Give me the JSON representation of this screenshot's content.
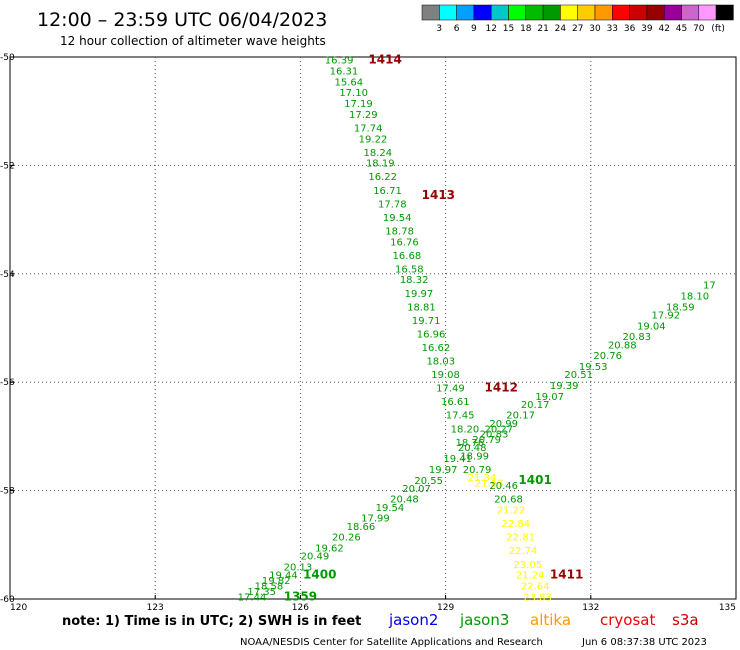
{
  "title": "12:00 – 23:59 UTC 06/04/2023",
  "subtitle": "12 hour collection of altimeter wave heights",
  "note": "note: 1) Time is in UTC; 2) SWH is in feet",
  "credit": "NOAA/NESDIS Center for Satellite Applications and Research",
  "timestamp": "Jun  6 08:37:38 UTC 2023",
  "satellites": [
    {
      "name": "jason2",
      "color": "#0000ee"
    },
    {
      "name": "jason3",
      "color": "#009900"
    },
    {
      "name": "altika",
      "color": "#ff9900"
    },
    {
      "name": "cryosat",
      "color": "#ee0000"
    },
    {
      "name": "s3a",
      "color": "#cc0000"
    }
  ],
  "colorbar": {
    "unit": "(ft)",
    "ticks": [
      "3",
      "6",
      "9",
      "12",
      "15",
      "18",
      "21",
      "24",
      "27",
      "30",
      "33",
      "36",
      "39",
      "42",
      "45",
      "70"
    ],
    "colors": [
      "#808080",
      "#00ffff",
      "#00a0ff",
      "#0000ff",
      "#00c8c8",
      "#00ff00",
      "#00bb00",
      "#009900",
      "#ffff00",
      "#ffcc00",
      "#ff9900",
      "#ff0000",
      "#cc0000",
      "#990000",
      "#990099",
      "#cc66cc",
      "#ff99ff",
      "#000000"
    ]
  },
  "chart_data": {
    "type": "scatter",
    "xlim": [
      120,
      135
    ],
    "ylim": [
      -60,
      -50
    ],
    "xticks": [
      120,
      123,
      126,
      129,
      132,
      135
    ],
    "yticks": [
      -50,
      -52,
      -54,
      -56,
      -58,
      -60
    ],
    "xtick_labels": [
      "120",
      "123",
      "126",
      "129",
      "132",
      "135"
    ],
    "ytick_labels": [
      "-50",
      "-52",
      "-54",
      "-56",
      "-58",
      "-60"
    ],
    "grid": true,
    "points": [
      {
        "lon": 126.8,
        "lat": -50.05,
        "v": "16.39",
        "c": "#009900"
      },
      {
        "lon": 126.9,
        "lat": -50.25,
        "v": "16.31",
        "c": "#009900"
      },
      {
        "lon": 127.0,
        "lat": -50.45,
        "v": "15.64",
        "c": "#009900"
      },
      {
        "lon": 127.1,
        "lat": -50.65,
        "v": "17.10",
        "c": "#009900"
      },
      {
        "lon": 127.2,
        "lat": -50.85,
        "v": "17.19",
        "c": "#009900"
      },
      {
        "lon": 127.3,
        "lat": -51.05,
        "v": "17.29",
        "c": "#009900"
      },
      {
        "lon": 127.4,
        "lat": -51.3,
        "v": "17.74",
        "c": "#009900"
      },
      {
        "lon": 127.5,
        "lat": -51.5,
        "v": "19.22",
        "c": "#009900"
      },
      {
        "lon": 127.6,
        "lat": -51.75,
        "v": "18.24",
        "c": "#009900"
      },
      {
        "lon": 127.65,
        "lat": -51.95,
        "v": "18.19",
        "c": "#009900"
      },
      {
        "lon": 127.7,
        "lat": -52.2,
        "v": "16.22",
        "c": "#009900"
      },
      {
        "lon": 127.8,
        "lat": -52.45,
        "v": "16.71",
        "c": "#009900"
      },
      {
        "lon": 127.9,
        "lat": -52.7,
        "v": "17.78",
        "c": "#009900"
      },
      {
        "lon": 128.0,
        "lat": -52.95,
        "v": "19.54",
        "c": "#009900"
      },
      {
        "lon": 128.05,
        "lat": -53.2,
        "v": "18.78",
        "c": "#009900"
      },
      {
        "lon": 128.15,
        "lat": -53.4,
        "v": "16.76",
        "c": "#009900"
      },
      {
        "lon": 128.2,
        "lat": -53.65,
        "v": "16.68",
        "c": "#009900"
      },
      {
        "lon": 128.25,
        "lat": -53.9,
        "v": "16.58",
        "c": "#009900"
      },
      {
        "lon": 128.35,
        "lat": -54.1,
        "v": "18.32",
        "c": "#009900"
      },
      {
        "lon": 128.45,
        "lat": -54.35,
        "v": "19.97",
        "c": "#009900"
      },
      {
        "lon": 128.5,
        "lat": -54.6,
        "v": "18.81",
        "c": "#009900"
      },
      {
        "lon": 128.6,
        "lat": -54.85,
        "v": "19.71",
        "c": "#009900"
      },
      {
        "lon": 128.7,
        "lat": -55.1,
        "v": "16.96",
        "c": "#009900"
      },
      {
        "lon": 128.8,
        "lat": -55.35,
        "v": "16.62",
        "c": "#009900"
      },
      {
        "lon": 128.9,
        "lat": -55.6,
        "v": "18.03",
        "c": "#009900"
      },
      {
        "lon": 129.0,
        "lat": -55.85,
        "v": "19.08",
        "c": "#009900"
      },
      {
        "lon": 129.1,
        "lat": -56.1,
        "v": "17.49",
        "c": "#009900"
      },
      {
        "lon": 129.2,
        "lat": -56.35,
        "v": "16.61",
        "c": "#009900"
      },
      {
        "lon": 129.3,
        "lat": -56.6,
        "v": "17.45",
        "c": "#009900"
      },
      {
        "lon": 129.4,
        "lat": -56.85,
        "v": "18.20",
        "c": "#009900"
      },
      {
        "lon": 129.5,
        "lat": -57.1,
        "v": "18.76",
        "c": "#009900"
      },
      {
        "lon": 129.6,
        "lat": -57.35,
        "v": "18.99",
        "c": "#009900"
      },
      {
        "lon": 129.65,
        "lat": -57.6,
        "v": "20.79",
        "c": "#009900"
      },
      {
        "lon": 129.75,
        "lat": -57.75,
        "v": "21.34",
        "c": "#ffff00"
      },
      {
        "lon": 129.9,
        "lat": -57.85,
        "v": "21.63",
        "c": "#ffff00"
      },
      {
        "lon": 130.2,
        "lat": -57.9,
        "v": "20.46",
        "c": "#009900"
      },
      {
        "lon": 130.3,
        "lat": -58.15,
        "v": "20.68",
        "c": "#009900"
      },
      {
        "lon": 130.35,
        "lat": -58.35,
        "v": "21.22",
        "c": "#ffff00"
      },
      {
        "lon": 130.45,
        "lat": -58.6,
        "v": "22.84",
        "c": "#ffff00"
      },
      {
        "lon": 130.55,
        "lat": -58.85,
        "v": "22.81",
        "c": "#ffff00"
      },
      {
        "lon": 130.6,
        "lat": -59.1,
        "v": "22.74",
        "c": "#ffff00"
      },
      {
        "lon": 130.7,
        "lat": -59.35,
        "v": "23.05",
        "c": "#ffff00"
      },
      {
        "lon": 130.75,
        "lat": -59.55,
        "v": "21.24",
        "c": "#ffff00"
      },
      {
        "lon": 130.85,
        "lat": -59.75,
        "v": "22.64",
        "c": "#ffff00"
      },
      {
        "lon": 130.9,
        "lat": -59.95,
        "v": "23.83",
        "c": "#ffff00"
      },
      {
        "lon": 125.0,
        "lat": -59.95,
        "v": "17.44",
        "c": "#009900"
      },
      {
        "lon": 125.2,
        "lat": -59.85,
        "v": "17.35",
        "c": "#009900"
      },
      {
        "lon": 125.35,
        "lat": -59.75,
        "v": "18.58",
        "c": "#009900"
      },
      {
        "lon": 125.5,
        "lat": -59.65,
        "v": "19.82",
        "c": "#009900"
      },
      {
        "lon": 125.65,
        "lat": -59.55,
        "v": "19.44",
        "c": "#009900"
      },
      {
        "lon": 125.95,
        "lat": -59.4,
        "v": "20.13",
        "c": "#009900"
      },
      {
        "lon": 126.3,
        "lat": -59.2,
        "v": "20.49",
        "c": "#009900"
      },
      {
        "lon": 126.6,
        "lat": -59.05,
        "v": "19.62",
        "c": "#009900"
      },
      {
        "lon": 126.95,
        "lat": -58.85,
        "v": "20.26",
        "c": "#009900"
      },
      {
        "lon": 127.25,
        "lat": -58.65,
        "v": "18.66",
        "c": "#009900"
      },
      {
        "lon": 127.55,
        "lat": -58.5,
        "v": "17.99",
        "c": "#009900"
      },
      {
        "lon": 127.85,
        "lat": -58.3,
        "v": "19.54",
        "c": "#009900"
      },
      {
        "lon": 128.15,
        "lat": -58.15,
        "v": "20.48",
        "c": "#009900"
      },
      {
        "lon": 128.4,
        "lat": -57.95,
        "v": "20.07",
        "c": "#009900"
      },
      {
        "lon": 128.65,
        "lat": -57.8,
        "v": "20.55",
        "c": "#009900"
      },
      {
        "lon": 128.95,
        "lat": -57.6,
        "v": "19.97",
        "c": "#009900"
      },
      {
        "lon": 129.25,
        "lat": -57.4,
        "v": "19.41",
        "c": "#009900"
      },
      {
        "lon": 129.55,
        "lat": -57.2,
        "v": "20.48",
        "c": "#009900"
      },
      {
        "lon": 129.85,
        "lat": -57.05,
        "v": "20.79",
        "c": "#009900"
      },
      {
        "lon": 130.0,
        "lat": -56.95,
        "v": "20.83",
        "c": "#009900"
      },
      {
        "lon": 130.1,
        "lat": -56.85,
        "v": "20.27",
        "c": "#009900"
      },
      {
        "lon": 130.2,
        "lat": -56.75,
        "v": "20.99",
        "c": "#009900"
      },
      {
        "lon": 130.55,
        "lat": -56.6,
        "v": "20.17",
        "c": "#009900"
      },
      {
        "lon": 130.85,
        "lat": -56.4,
        "v": "20.17",
        "c": "#009900"
      },
      {
        "lon": 131.15,
        "lat": -56.25,
        "v": "19.07",
        "c": "#009900"
      },
      {
        "lon": 131.45,
        "lat": -56.05,
        "v": "19.39",
        "c": "#009900"
      },
      {
        "lon": 131.75,
        "lat": -55.85,
        "v": "20.51",
        "c": "#009900"
      },
      {
        "lon": 132.05,
        "lat": -55.7,
        "v": "19.53",
        "c": "#009900"
      },
      {
        "lon": 132.35,
        "lat": -55.5,
        "v": "20.76",
        "c": "#009900"
      },
      {
        "lon": 132.65,
        "lat": -55.3,
        "v": "20.88",
        "c": "#009900"
      },
      {
        "lon": 132.95,
        "lat": -55.15,
        "v": "20.83",
        "c": "#009900"
      },
      {
        "lon": 133.25,
        "lat": -54.95,
        "v": "19.04",
        "c": "#009900"
      },
      {
        "lon": 133.55,
        "lat": -54.75,
        "v": "17.92",
        "c": "#009900"
      },
      {
        "lon": 133.85,
        "lat": -54.6,
        "v": "18.59",
        "c": "#009900"
      },
      {
        "lon": 134.15,
        "lat": -54.4,
        "v": "18.10",
        "c": "#009900"
      },
      {
        "lon": 134.45,
        "lat": -54.2,
        "v": "17",
        "c": "#009900"
      }
    ],
    "passes": [
      {
        "lon": 127.75,
        "lat": -50.05,
        "v": "1414",
        "c": "#990000"
      },
      {
        "lon": 128.85,
        "lat": -52.55,
        "v": "1413",
        "c": "#990000"
      },
      {
        "lon": 130.15,
        "lat": -56.1,
        "v": "1412",
        "c": "#990000"
      },
      {
        "lon": 130.85,
        "lat": -57.8,
        "v": "1401",
        "c": "#009900"
      },
      {
        "lon": 131.5,
        "lat": -59.55,
        "v": "1411",
        "c": "#990000"
      },
      {
        "lon": 126.4,
        "lat": -59.55,
        "v": "1400",
        "c": "#009900"
      },
      {
        "lon": 126.0,
        "lat": -59.95,
        "v": "1359",
        "c": "#009900"
      }
    ]
  }
}
